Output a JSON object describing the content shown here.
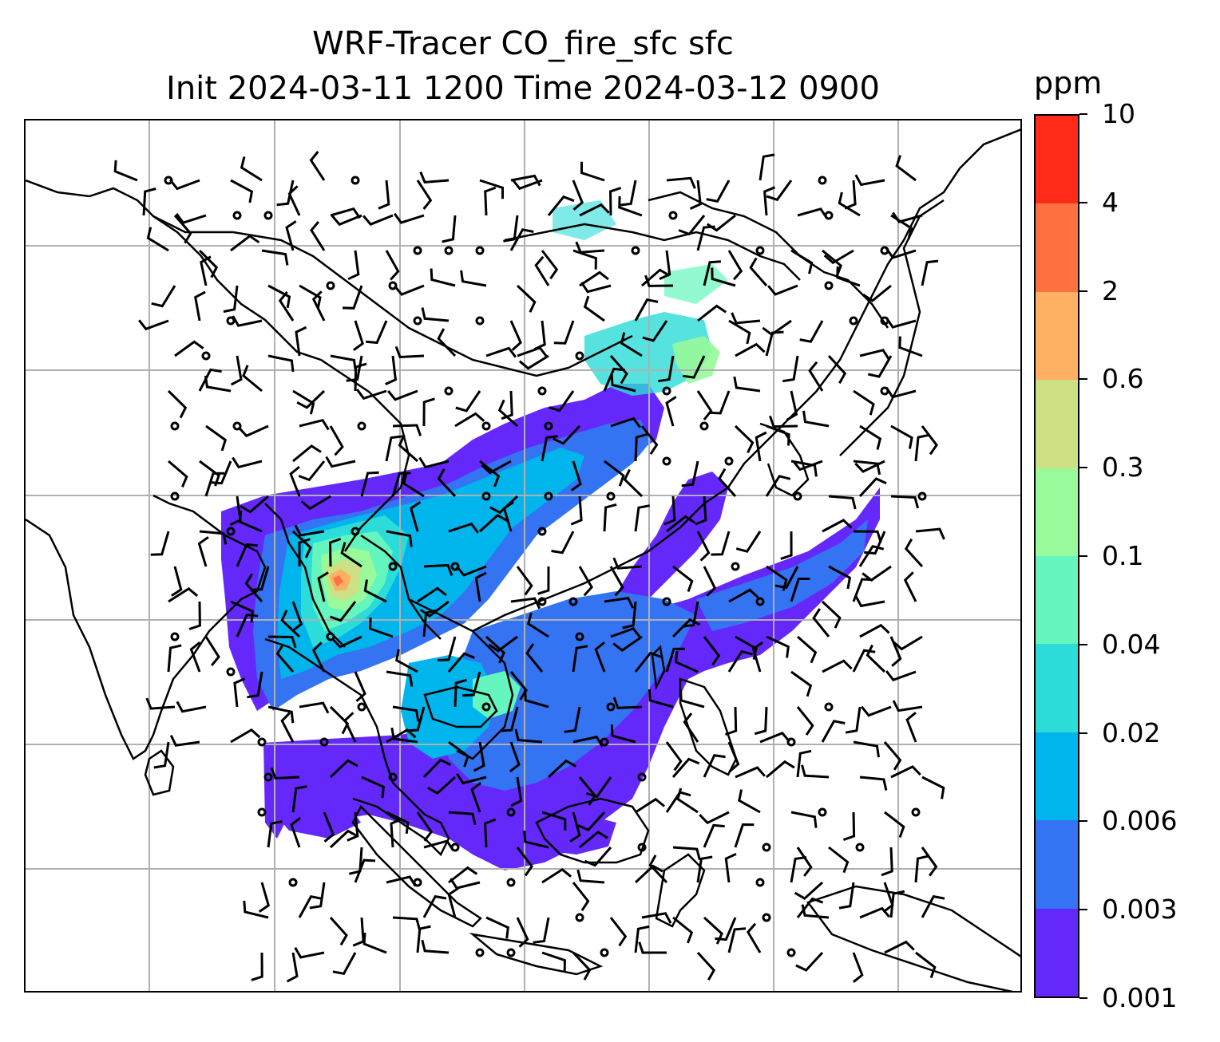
{
  "title": {
    "line1": "WRF-Tracer CO_fire_sfc sfc",
    "line2": "Init 2024-03-11 1200 Time 2024-03-12 0900"
  },
  "colorbar": {
    "units": "ppm",
    "levels": [
      "0.001",
      "0.003",
      "0.006",
      "0.02",
      "0.04",
      "0.1",
      "0.3",
      "0.6",
      "2",
      "4",
      "10"
    ],
    "colors": [
      "#6428fb",
      "#3474f2",
      "#00b5eb",
      "#2cdcd8",
      "#64f6be",
      "#98fa9a",
      "#cde084",
      "#ffb062",
      "#ff7140",
      "#ff2a17"
    ]
  },
  "map": {
    "gridlines": true,
    "wind_barbs": true,
    "coastlines": true,
    "field": "CO_fire_sfc"
  }
}
